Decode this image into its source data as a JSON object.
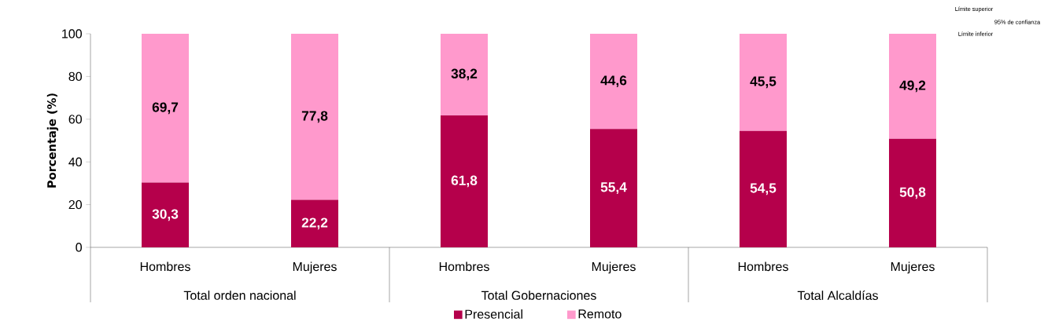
{
  "chart_data": {
    "type": "bar",
    "stacked": true,
    "ylabel": "Porcentaje (%)",
    "categories": [
      "Hombres",
      "Mujeres",
      "Hombres",
      "Mujeres",
      "Hombres",
      "Mujeres"
    ],
    "series": [
      {
        "name": "Presencial",
        "color": "#b5004b",
        "values": [
          30.3,
          22.2,
          61.8,
          55.4,
          54.5,
          50.8
        ],
        "value_labels": [
          "30,3",
          "22,2",
          "61,8",
          "55,4",
          "54,5",
          "50,8"
        ]
      },
      {
        "name": "Remoto",
        "color": "#ff99cc",
        "values": [
          69.7,
          77.8,
          38.2,
          44.6,
          45.5,
          49.2
        ],
        "value_labels": [
          "69,7",
          "77,8",
          "38,2",
          "44,6",
          "45,5",
          "49,2"
        ]
      }
    ],
    "ylim": [
      0,
      100
    ],
    "yticks": [
      0,
      20,
      40,
      60,
      80,
      100
    ],
    "grid": false,
    "legend": "bottom",
    "annotations": [
      "Total orden nacional",
      "Total Gobernaciones",
      "Total Alcaldías",
      "Límite superior",
      "95% de confianza",
      "Límite inferior"
    ]
  }
}
